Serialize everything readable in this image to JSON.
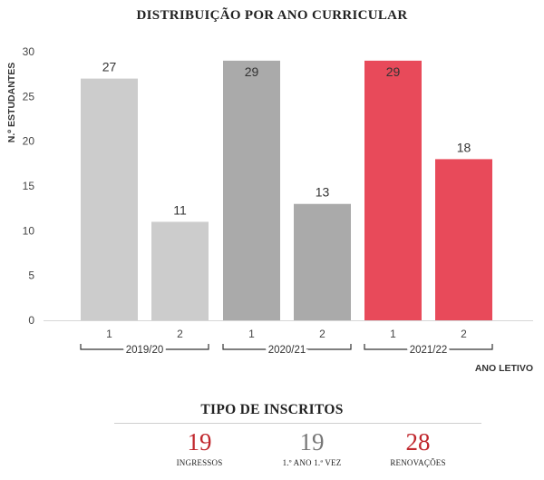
{
  "chart_data": {
    "type": "bar",
    "title": "DISTRIBUIÇÃO POR ANO CURRICULAR",
    "ylabel": "N.º ESTUDANTES",
    "xlabel": "ANO LETIVO",
    "ylim": [
      0,
      30
    ],
    "yticks": [
      "0",
      "5",
      "10",
      "15",
      "20",
      "25",
      "30"
    ],
    "groups": [
      {
        "name": "2019/20",
        "color": "#cccccc",
        "bars": [
          {
            "category": "1",
            "value": 27
          },
          {
            "category": "2",
            "value": 11
          }
        ]
      },
      {
        "name": "2020/21",
        "color": "#aaaaaa",
        "bars": [
          {
            "category": "1",
            "value": 29
          },
          {
            "category": "2",
            "value": 13
          }
        ]
      },
      {
        "name": "2021/22",
        "color": "#e84a5a",
        "bars": [
          {
            "category": "1",
            "value": 29
          },
          {
            "category": "2",
            "value": 18
          }
        ]
      }
    ]
  },
  "summary": {
    "title": "TIPO DE INSCRITOS",
    "stats": [
      {
        "value": "19",
        "label": "INGRESSOS",
        "color": "#c0272d"
      },
      {
        "value": "19",
        "label": "1.º ANO 1.ª VEZ",
        "color": "#777777"
      },
      {
        "value": "28",
        "label": "RENOVAÇÕES",
        "color": "#c0272d"
      }
    ]
  }
}
